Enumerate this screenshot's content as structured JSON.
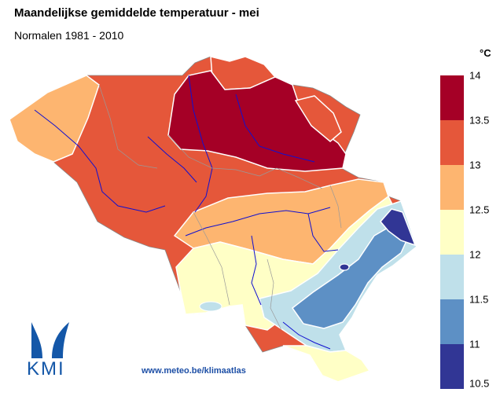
{
  "title": "Maandelijkse gemiddelde temperatuur - mei",
  "subtitle": "Normalen 1981 - 2010",
  "unit": "°C",
  "legend": {
    "ticks": [
      "14",
      "13.5",
      "13",
      "12.5",
      "12",
      "11.5",
      "11",
      "10.5"
    ],
    "colors": [
      "#a50026",
      "#e5573a",
      "#fdb570",
      "#ffffc6",
      "#bfe0ea",
      "#5d90c5",
      "#313695"
    ]
  },
  "footer_url": "www.meteo.be/klimaatlas",
  "logo": {
    "text": "KMI"
  }
}
